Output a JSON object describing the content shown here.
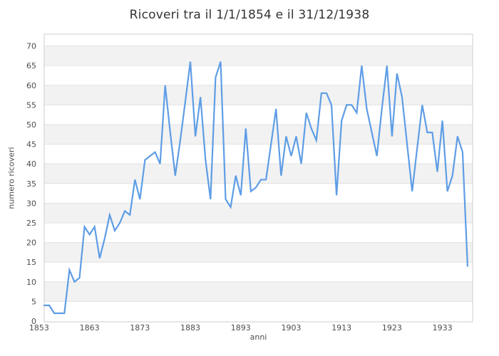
{
  "chart_data": {
    "type": "line",
    "title": "Ricoveri tra il 1/1/1854 e il 31/12/1938",
    "xlabel": "anni",
    "ylabel": "numero ricoveri",
    "legend": "none",
    "grid": "horizontal-bands",
    "xlim": [
      1854,
      1939
    ],
    "ylim": [
      0,
      73
    ],
    "x_ticks": [
      1853,
      1863,
      1873,
      1883,
      1893,
      1903,
      1913,
      1923,
      1933
    ],
    "y_ticks": [
      0,
      5,
      10,
      15,
      20,
      25,
      30,
      35,
      40,
      45,
      50,
      55,
      60,
      65,
      70
    ],
    "line_color": "#5e9de6",
    "band_color": "#f2f2f2",
    "gridline_color": "#e2e2e2",
    "border_color": "#cccccc",
    "tick_text_color": "#4d4d4d",
    "title_color": "#333333",
    "years": [
      1854,
      1855,
      1856,
      1857,
      1858,
      1859,
      1860,
      1861,
      1862,
      1863,
      1864,
      1865,
      1866,
      1867,
      1868,
      1869,
      1870,
      1871,
      1872,
      1873,
      1874,
      1875,
      1876,
      1877,
      1878,
      1879,
      1880,
      1881,
      1882,
      1883,
      1884,
      1885,
      1886,
      1887,
      1888,
      1889,
      1890,
      1891,
      1892,
      1893,
      1894,
      1895,
      1896,
      1897,
      1898,
      1899,
      1900,
      1901,
      1902,
      1903,
      1904,
      1905,
      1906,
      1907,
      1908,
      1909,
      1910,
      1911,
      1912,
      1913,
      1914,
      1915,
      1916,
      1917,
      1918,
      1919,
      1920,
      1921,
      1922,
      1923,
      1924,
      1925,
      1926,
      1927,
      1928,
      1929,
      1930,
      1931,
      1932,
      1933,
      1934,
      1935,
      1936,
      1937,
      1938
    ],
    "values": [
      4,
      4,
      2,
      2,
      2,
      13,
      10,
      11,
      24,
      22,
      24,
      16,
      21,
      27,
      23,
      25,
      28,
      27,
      36,
      31,
      41,
      42,
      43,
      40,
      60,
      48,
      37,
      46,
      56,
      66,
      47,
      57,
      41,
      31,
      62,
      66,
      31,
      29,
      37,
      32,
      49,
      33,
      34,
      36,
      36,
      45,
      54,
      37,
      47,
      42,
      47,
      40,
      53,
      49,
      46,
      58,
      58,
      55,
      32,
      51,
      55,
      55,
      53,
      65,
      54,
      48,
      42,
      54,
      65,
      47,
      63,
      57,
      45,
      33,
      44,
      55,
      48,
      48,
      38,
      51,
      33,
      37,
      47,
      43,
      14
    ]
  }
}
